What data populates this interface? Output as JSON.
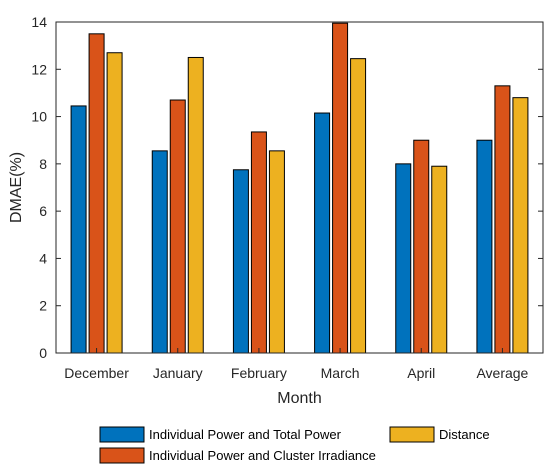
{
  "chart_data": {
    "type": "bar",
    "title": "",
    "xlabel": "Month",
    "ylabel": "DMAE(%)",
    "categories": [
      "December",
      "January",
      "February",
      "March",
      "April",
      "Average"
    ],
    "ylim": [
      0,
      14
    ],
    "yticks": [
      0,
      2,
      4,
      6,
      8,
      10,
      12,
      14
    ],
    "grid": false,
    "legend_placement": "bottom",
    "series": [
      {
        "name": "Individual Power and Total Power",
        "color": "#0072BD",
        "values": [
          10.45,
          8.55,
          7.75,
          10.15,
          8.0,
          9.0
        ]
      },
      {
        "name": "Individual Power and Cluster Irradiance",
        "color": "#D95319",
        "values": [
          13.5,
          10.7,
          9.35,
          13.95,
          9.0,
          11.3
        ]
      },
      {
        "name": "Distance",
        "color": "#EDB120",
        "values": [
          12.7,
          12.5,
          8.55,
          12.45,
          7.9,
          10.8
        ]
      }
    ]
  }
}
